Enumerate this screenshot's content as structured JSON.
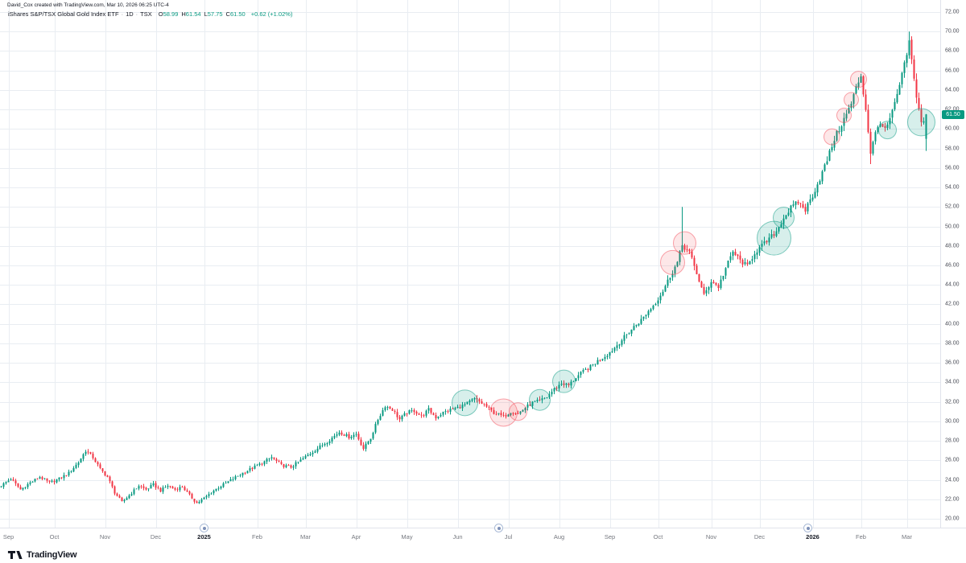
{
  "attribution": "David_Cox created with TradingView.com, Mar 10, 2026 06:25 UTC-4",
  "legend": {
    "symbol_title": "iShares S&P/TSX Global Gold Index ETF",
    "separator": "·",
    "interval": "1D",
    "exchange": "TSX",
    "ohlc": [
      {
        "label": "O",
        "value": "58.99"
      },
      {
        "label": "H",
        "value": "61.54"
      },
      {
        "label": "L",
        "value": "57.75"
      },
      {
        "label": "C",
        "value": "61.50"
      }
    ],
    "change": "+0.62 (+1.02%)"
  },
  "price_axis": {
    "last_price": "61.50",
    "last_price_value": 61.5
  },
  "timeline_events": [
    {
      "idx": 84
    },
    {
      "idx": 206
    },
    {
      "idx": 334
    }
  ],
  "logo": {
    "text": "TradingView"
  },
  "chart_data": {
    "type": "candlestick",
    "title": "iShares S&P/TSX Global Gold Index ETF",
    "interval": "1D",
    "exchange": "TSX",
    "x_range": "Sep 2024 - Mar 2026",
    "last_candle": {
      "open": 58.99,
      "high": 61.54,
      "low": 57.75,
      "close": 61.5,
      "change": 0.62,
      "change_pct": 1.02
    },
    "y_axis": {
      "min": 20,
      "max": 72,
      "step": 2,
      "labels": [
        "72.00",
        "70.00",
        "68.00",
        "66.00",
        "64.00",
        "62.00",
        "60.00",
        "58.00",
        "56.00",
        "54.00",
        "52.00",
        "50.00",
        "48.00",
        "46.00",
        "44.00",
        "42.00",
        "40.00",
        "38.00",
        "36.00",
        "34.00",
        "32.00",
        "30.00",
        "28.00",
        "26.00",
        "24.00",
        "22.00",
        "20.00"
      ]
    },
    "x_axis": {
      "labels": [
        {
          "text": "Sep",
          "idx": 3
        },
        {
          "text": "Oct",
          "idx": 22
        },
        {
          "text": "Nov",
          "idx": 43
        },
        {
          "text": "Dec",
          "idx": 64
        },
        {
          "text": "2025",
          "idx": 84,
          "year": true
        },
        {
          "text": "Feb",
          "idx": 106
        },
        {
          "text": "Mar",
          "idx": 126
        },
        {
          "text": "Apr",
          "idx": 147
        },
        {
          "text": "May",
          "idx": 168
        },
        {
          "text": "Jun",
          "idx": 189
        },
        {
          "text": "Jul",
          "idx": 210
        },
        {
          "text": "Aug",
          "idx": 231
        },
        {
          "text": "Sep",
          "idx": 252
        },
        {
          "text": "Oct",
          "idx": 272
        },
        {
          "text": "Nov",
          "idx": 294
        },
        {
          "text": "Dec",
          "idx": 314
        },
        {
          "text": "2026",
          "idx": 336,
          "year": true
        },
        {
          "text": "Feb",
          "idx": 356
        },
        {
          "text": "Mar",
          "idx": 375
        }
      ]
    },
    "candle_count": 384,
    "close_anchors": [
      [
        0,
        23.4
      ],
      [
        4,
        24.1
      ],
      [
        8,
        23.0
      ],
      [
        12,
        23.7
      ],
      [
        16,
        24.3
      ],
      [
        20,
        23.7
      ],
      [
        24,
        24.1
      ],
      [
        28,
        24.7
      ],
      [
        32,
        25.8
      ],
      [
        35,
        27.0
      ],
      [
        38,
        26.3
      ],
      [
        41,
        25.1
      ],
      [
        44,
        24.3
      ],
      [
        47,
        22.7
      ],
      [
        50,
        21.7
      ],
      [
        53,
        22.4
      ],
      [
        57,
        23.4
      ],
      [
        60,
        23.0
      ],
      [
        63,
        23.5
      ],
      [
        66,
        22.9
      ],
      [
        69,
        23.4
      ],
      [
        72,
        23.0
      ],
      [
        75,
        23.3
      ],
      [
        78,
        22.4
      ],
      [
        81,
        21.6
      ],
      [
        84,
        22.1
      ],
      [
        88,
        22.9
      ],
      [
        92,
        23.5
      ],
      [
        96,
        24.1
      ],
      [
        100,
        24.7
      ],
      [
        104,
        25.2
      ],
      [
        108,
        25.7
      ],
      [
        112,
        26.3
      ],
      [
        116,
        25.5
      ],
      [
        120,
        25.3
      ],
      [
        124,
        26.0
      ],
      [
        128,
        26.7
      ],
      [
        132,
        27.4
      ],
      [
        136,
        28.1
      ],
      [
        140,
        28.9
      ],
      [
        144,
        28.4
      ],
      [
        147,
        28.7
      ],
      [
        150,
        27.2
      ],
      [
        153,
        28.3
      ],
      [
        156,
        30.2
      ],
      [
        159,
        31.6
      ],
      [
        162,
        31.2
      ],
      [
        165,
        30.2
      ],
      [
        168,
        30.9
      ],
      [
        171,
        31.1
      ],
      [
        174,
        30.5
      ],
      [
        177,
        31.2
      ],
      [
        180,
        30.4
      ],
      [
        183,
        30.9
      ],
      [
        186,
        31.2
      ],
      [
        189,
        31.4
      ],
      [
        192,
        31.7
      ],
      [
        196,
        32.3
      ],
      [
        200,
        31.7
      ],
      [
        204,
        30.9
      ],
      [
        208,
        30.5
      ],
      [
        211,
        31.0
      ],
      [
        214,
        30.8
      ],
      [
        217,
        31.4
      ],
      [
        220,
        31.9
      ],
      [
        223,
        32.1
      ],
      [
        226,
        32.5
      ],
      [
        229,
        33.3
      ],
      [
        232,
        33.9
      ],
      [
        235,
        33.7
      ],
      [
        238,
        34.5
      ],
      [
        241,
        35.1
      ],
      [
        244,
        35.6
      ],
      [
        247,
        36.2
      ],
      [
        250,
        36.7
      ],
      [
        253,
        37.3
      ],
      [
        256,
        38.1
      ],
      [
        259,
        38.9
      ],
      [
        262,
        39.7
      ],
      [
        265,
        40.4
      ],
      [
        268,
        41.3
      ],
      [
        271,
        42.2
      ],
      [
        274,
        43.4
      ],
      [
        277,
        44.9
      ],
      [
        280,
        46.3
      ],
      [
        282,
        48.1
      ],
      [
        285,
        47.3
      ],
      [
        288,
        45.2
      ],
      [
        291,
        42.9
      ],
      [
        294,
        44.4
      ],
      [
        297,
        43.8
      ],
      [
        300,
        45.7
      ],
      [
        303,
        47.4
      ],
      [
        306,
        46.5
      ],
      [
        309,
        45.9
      ],
      [
        312,
        47.3
      ],
      [
        315,
        48.0
      ],
      [
        318,
        48.7
      ],
      [
        321,
        49.5
      ],
      [
        324,
        50.9
      ],
      [
        327,
        51.9
      ],
      [
        330,
        52.5
      ],
      [
        333,
        51.7
      ],
      [
        336,
        53.2
      ],
      [
        339,
        54.9
      ],
      [
        342,
        56.8
      ],
      [
        345,
        59.0
      ],
      [
        348,
        60.5
      ],
      [
        350,
        61.5
      ],
      [
        352,
        62.6
      ],
      [
        354,
        64.2
      ],
      [
        356,
        65.5
      ],
      [
        358,
        62.0
      ],
      [
        360,
        57.6
      ],
      [
        362,
        59.5
      ],
      [
        364,
        60.8
      ],
      [
        366,
        59.8
      ],
      [
        368,
        61.0
      ],
      [
        370,
        62.5
      ],
      [
        372,
        64.5
      ],
      [
        374,
        66.5
      ],
      [
        376,
        68.9
      ],
      [
        377,
        67.0
      ],
      [
        378,
        65.0
      ],
      [
        379,
        63.5
      ],
      [
        380,
        62.0
      ],
      [
        381,
        60.8
      ],
      [
        382,
        60.88
      ],
      [
        383,
        61.5
      ]
    ],
    "candle_overrides": {
      "282": {
        "h": 52.0
      },
      "360": {
        "l": 56.4
      },
      "376": {
        "h": 70.0
      },
      "383": {
        "o": 58.99,
        "h": 61.54,
        "l": 57.75,
        "c": 61.5
      }
    },
    "markers": [
      {
        "idx": 192,
        "price": 31.9,
        "r": 16,
        "type": "green"
      },
      {
        "idx": 208,
        "price": 30.9,
        "r": 17,
        "type": "red"
      },
      {
        "idx": 214,
        "price": 31.0,
        "r": 11,
        "type": "red"
      },
      {
        "idx": 223,
        "price": 32.2,
        "r": 13,
        "type": "green"
      },
      {
        "idx": 233,
        "price": 34.1,
        "r": 14,
        "type": "green"
      },
      {
        "idx": 278,
        "price": 46.3,
        "r": 15,
        "type": "red"
      },
      {
        "idx": 283,
        "price": 48.3,
        "r": 14,
        "type": "red"
      },
      {
        "idx": 320,
        "price": 48.8,
        "r": 21,
        "type": "green"
      },
      {
        "idx": 324,
        "price": 50.9,
        "r": 13,
        "type": "green"
      },
      {
        "idx": 344,
        "price": 59.2,
        "r": 10,
        "type": "red"
      },
      {
        "idx": 349,
        "price": 61.4,
        "r": 9,
        "type": "red"
      },
      {
        "idx": 352,
        "price": 63.0,
        "r": 9,
        "type": "red"
      },
      {
        "idx": 355,
        "price": 65.1,
        "r": 10,
        "type": "red"
      },
      {
        "idx": 367,
        "price": 59.9,
        "r": 11,
        "type": "green"
      },
      {
        "idx": 381,
        "price": 60.7,
        "r": 17,
        "type": "green"
      }
    ],
    "colors": {
      "up": "#089981",
      "down": "#F23645",
      "grid": "#e9edf2",
      "marker_up_fill": "rgba(8,153,129,0.16)",
      "marker_up_stroke": "rgba(8,153,129,0.5)",
      "marker_down_fill": "rgba(242,54,69,0.12)",
      "marker_down_stroke": "rgba(242,54,69,0.45)"
    }
  }
}
